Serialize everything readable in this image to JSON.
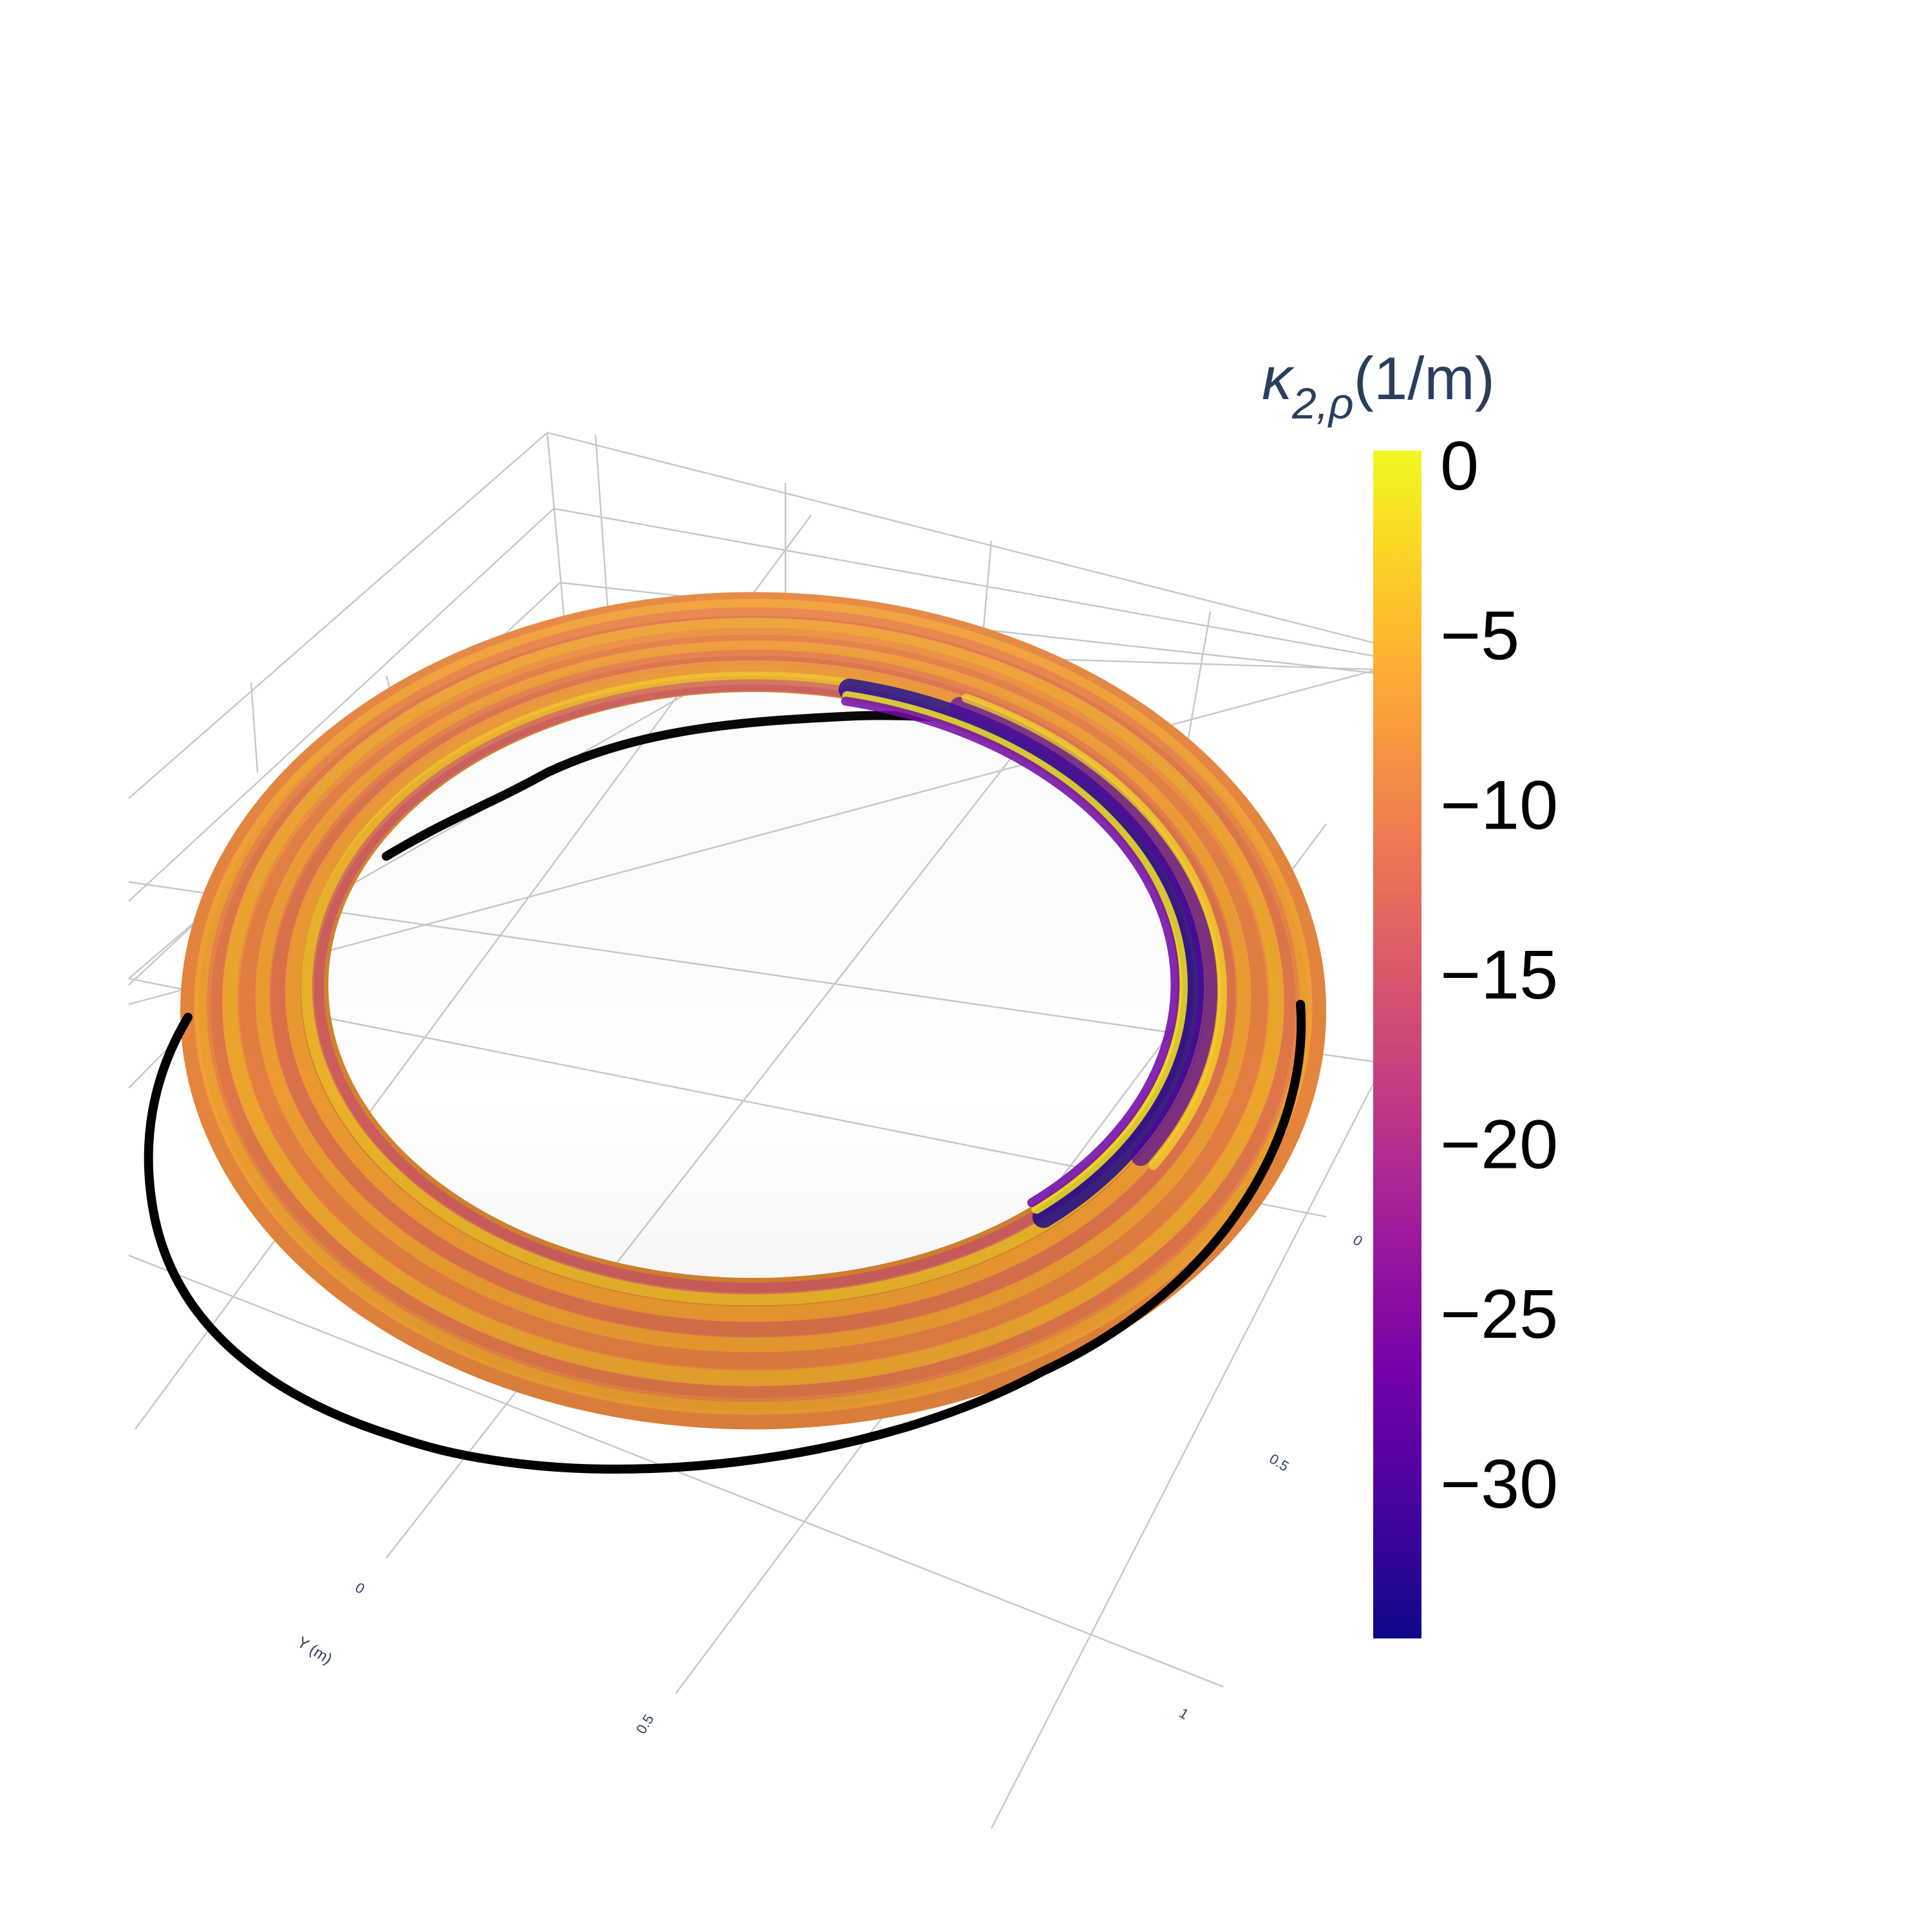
{
  "chart_data": {
    "type": "surface3d",
    "title": "",
    "surface": {
      "shape": "torus",
      "colorscale": "plasma",
      "color_variable": "κ2,ρ",
      "color_range": [
        -34.5,
        0.5
      ]
    },
    "curve": {
      "color": "#000000",
      "description": "closed space curve winding once around the torus"
    },
    "axes": {
      "x": {
        "label": "",
        "ticks": [
          "0",
          "0.5"
        ]
      },
      "y": {
        "label": "Y (m)",
        "ticks": [
          "0",
          "0.5",
          "1"
        ]
      },
      "grid": true
    },
    "colorbar": {
      "title_symbol": "κ",
      "title_subscript": "2,ρ",
      "title_unit": "(1/m)",
      "ticks": [
        {
          "value": 0,
          "label": "0"
        },
        {
          "value": -5,
          "label": "−5"
        },
        {
          "value": -10,
          "label": "−10"
        },
        {
          "value": -15,
          "label": "−15"
        },
        {
          "value": -20,
          "label": "−20"
        },
        {
          "value": -25,
          "label": "−25"
        },
        {
          "value": -30,
          "label": "−30"
        }
      ]
    }
  },
  "colors": {
    "title_text": "#2a3f5f",
    "tick_text": "#000000",
    "grid_line": "#c7c7c7",
    "torus_base": "#d4822f",
    "plasma": [
      "#0d0887",
      "#46039f",
      "#7201a8",
      "#9c179e",
      "#bd3786",
      "#d8576b",
      "#ed7953",
      "#fb9f3a",
      "#fdca26",
      "#f0f921"
    ]
  }
}
